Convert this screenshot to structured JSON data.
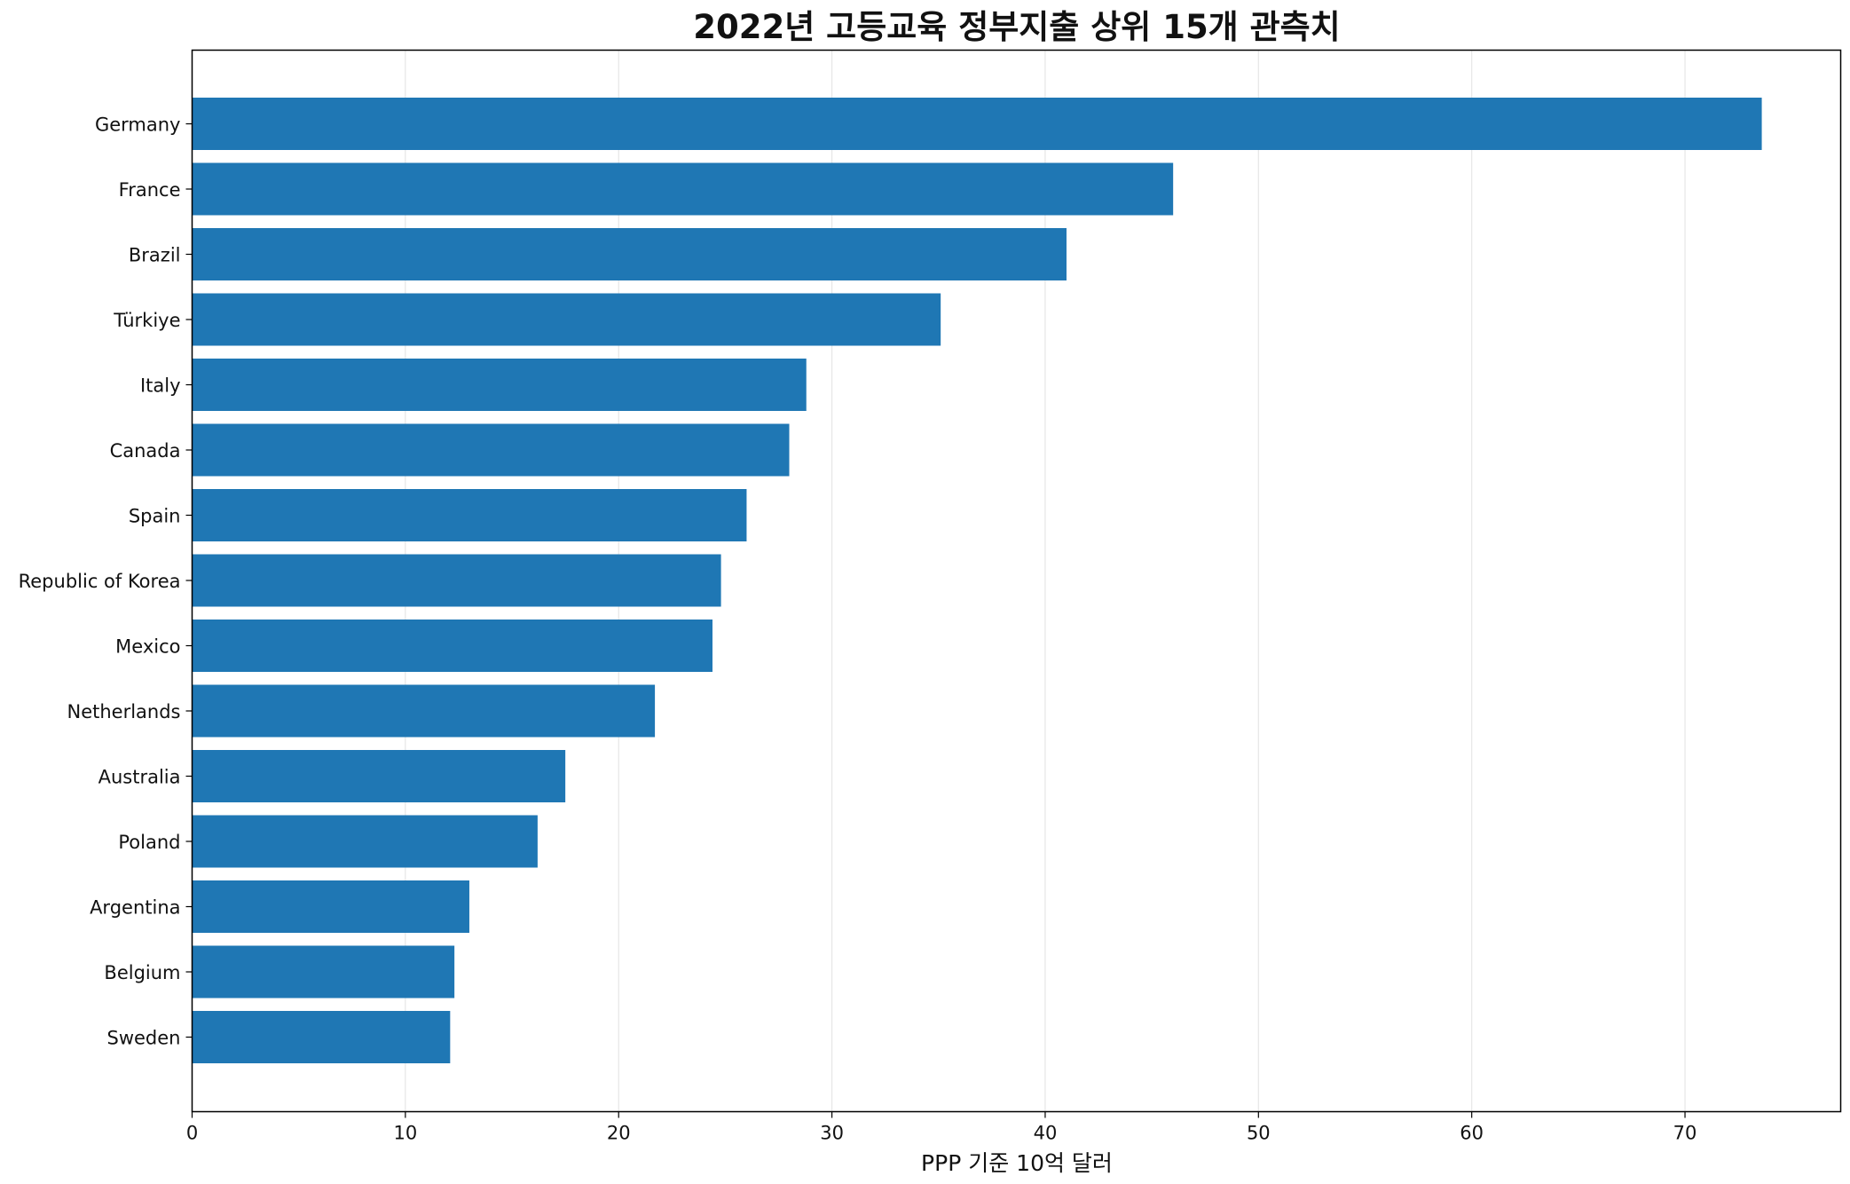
{
  "chart_data": {
    "type": "bar",
    "orientation": "horizontal",
    "title": "2022년 고등교육 정부지출 상위 15개 관측치",
    "xlabel": "PPP 기준 10억 달러",
    "ylabel": "",
    "categories": [
      "Germany",
      "France",
      "Brazil",
      "Türkiye",
      "Italy",
      "Canada",
      "Spain",
      "Republic of Korea",
      "Mexico",
      "Netherlands",
      "Australia",
      "Poland",
      "Argentina",
      "Belgium",
      "Sweden"
    ],
    "values": [
      73.6,
      46.0,
      41.0,
      35.1,
      28.8,
      28.0,
      26.0,
      24.8,
      24.4,
      21.7,
      17.5,
      16.2,
      13.0,
      12.3,
      12.1
    ],
    "xlim": [
      0,
      77.3
    ],
    "xticks": [
      0,
      10,
      20,
      30,
      40,
      50,
      60,
      70
    ],
    "bar_color": "#1f77b4",
    "grid": "vertical",
    "legend": "none"
  }
}
